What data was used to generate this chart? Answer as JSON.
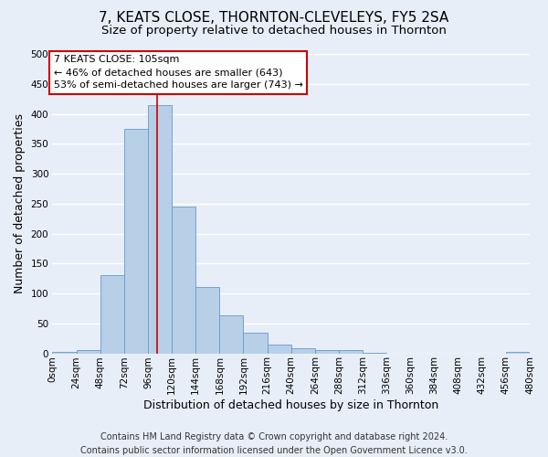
{
  "title": "7, KEATS CLOSE, THORNTON-CLEVELEYS, FY5 2SA",
  "subtitle": "Size of property relative to detached houses in Thornton",
  "xlabel": "Distribution of detached houses by size in Thornton",
  "ylabel": "Number of detached properties",
  "footer_line1": "Contains HM Land Registry data © Crown copyright and database right 2024.",
  "footer_line2": "Contains public sector information licensed under the Open Government Licence v3.0.",
  "bin_edges": [
    0,
    24,
    48,
    72,
    96,
    120,
    144,
    168,
    192,
    216,
    240,
    264,
    288,
    312,
    336,
    360,
    384,
    408,
    432,
    456,
    480
  ],
  "bar_heights": [
    3,
    6,
    130,
    375,
    415,
    245,
    110,
    64,
    34,
    14,
    8,
    5,
    6,
    1,
    0,
    0,
    0,
    0,
    0,
    3
  ],
  "bar_color": "#b8cfe8",
  "bar_edge_color": "#6699cc",
  "vline_x": 105,
  "vline_color": "#cc0000",
  "annotation_title": "7 KEATS CLOSE: 105sqm",
  "annotation_line1": "← 46% of detached houses are smaller (643)",
  "annotation_line2": "53% of semi-detached houses are larger (743) →",
  "annotation_box_color": "#cc0000",
  "ylim": [
    0,
    500
  ],
  "yticks": [
    0,
    50,
    100,
    150,
    200,
    250,
    300,
    350,
    400,
    450,
    500
  ],
  "xtick_labels": [
    "0sqm",
    "24sqm",
    "48sqm",
    "72sqm",
    "96sqm",
    "120sqm",
    "144sqm",
    "168sqm",
    "192sqm",
    "216sqm",
    "240sqm",
    "264sqm",
    "288sqm",
    "312sqm",
    "336sqm",
    "360sqm",
    "384sqm",
    "408sqm",
    "432sqm",
    "456sqm",
    "480sqm"
  ],
  "fig_bg_color": "#e8eef8",
  "ax_bg_color": "#e8eef8",
  "grid_color": "#ffffff",
  "title_fontsize": 11,
  "subtitle_fontsize": 9.5,
  "axis_label_fontsize": 9,
  "tick_fontsize": 7.5,
  "footer_fontsize": 7,
  "annot_fontsize": 8
}
